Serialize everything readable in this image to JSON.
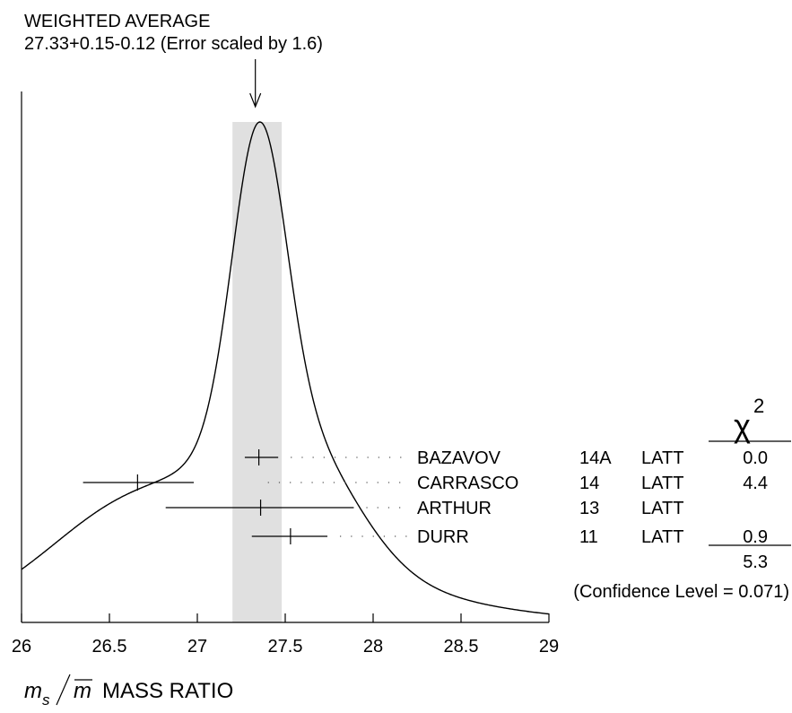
{
  "chart_data": {
    "type": "ideogram",
    "title": "WEIGHTED AVERAGE",
    "subtitle": "27.33+0.15-0.12 (Error scaled by 1.6)",
    "xlabel_symbol": "m",
    "xlabel_sub": "s",
    "xlabel_bar": "m",
    "xlabel_text": "MASS RATIO",
    "xlim": [
      26,
      29
    ],
    "xticks": [
      "26",
      "26.5",
      "27",
      "27.5",
      "28",
      "28.5",
      "29"
    ],
    "xtick_values": [
      26,
      26.5,
      27,
      27.5,
      28,
      28.5,
      29
    ],
    "average": {
      "value": 27.33,
      "err_plus": 0.15,
      "err_minus": 0.12,
      "band": [
        27.2,
        27.48
      ]
    },
    "chi2_header": "χ",
    "chi2_sup": "2",
    "measurements": [
      {
        "author": "BAZAVOV",
        "year": "14A",
        "tecn": "LATT",
        "value": 27.35,
        "lo": 27.27,
        "hi": 27.46,
        "chi2": "0.0"
      },
      {
        "author": "CARRASCO",
        "year": "14",
        "tecn": "LATT",
        "value": 26.66,
        "lo": 26.35,
        "hi": 26.98,
        "chi2": "4.4"
      },
      {
        "author": "ARTHUR",
        "year": "13",
        "tecn": "LATT",
        "value": 27.36,
        "lo": 26.82,
        "hi": 27.89,
        "chi2": ""
      },
      {
        "author": "DURR",
        "year": "11",
        "tecn": "LATT",
        "value": 27.53,
        "lo": 27.31,
        "hi": 27.74,
        "chi2": "0.9"
      }
    ],
    "chi2_total": "5.3",
    "confidence": "(Confidence Level = 0.071)"
  }
}
